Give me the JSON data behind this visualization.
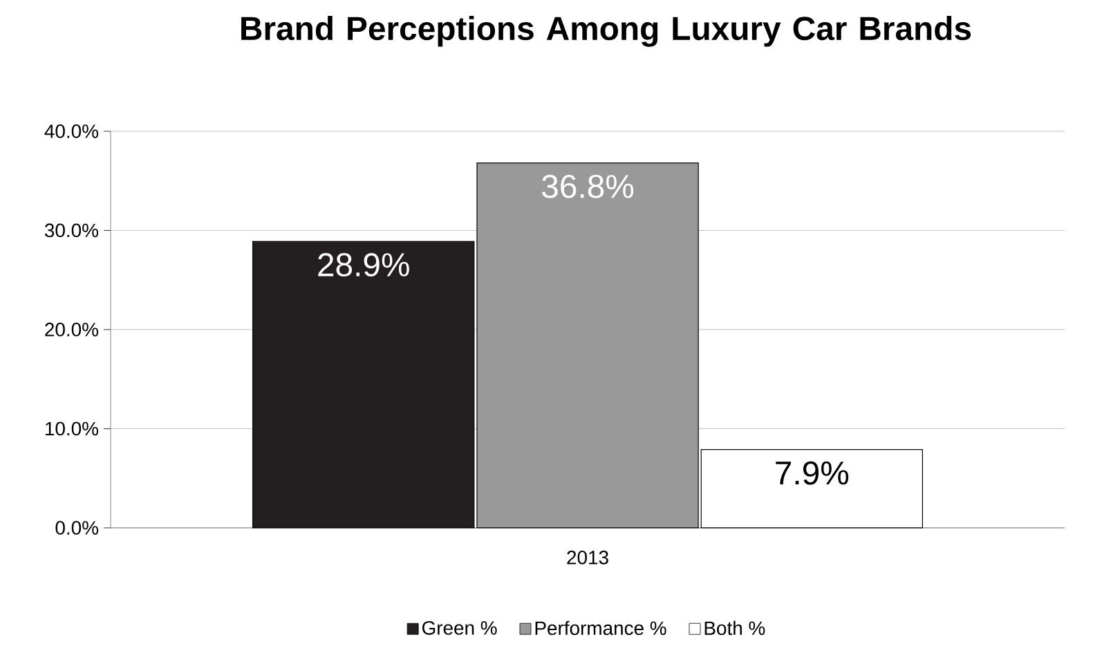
{
  "chart_data": {
    "type": "bar",
    "title": "Brand Perceptions Among Luxury Car Brands",
    "categories": [
      "2013"
    ],
    "series": [
      {
        "name": "Green %",
        "color": "#231f20",
        "values": [
          28.9
        ],
        "value_labels": [
          "28.9%"
        ]
      },
      {
        "name": "Performance %",
        "color": "#999999",
        "values": [
          36.8
        ],
        "value_labels": [
          "36.8%"
        ]
      },
      {
        "name": "Both %",
        "color": "#ffffff",
        "values": [
          7.9
        ],
        "value_labels": [
          "7.9%"
        ]
      }
    ],
    "ylim": [
      0,
      40
    ],
    "yticks": [
      {
        "value": 0,
        "label": "0.0%"
      },
      {
        "value": 10,
        "label": "10.0%"
      },
      {
        "value": 20,
        "label": "20.0%"
      },
      {
        "value": 30,
        "label": "30.0%"
      },
      {
        "value": 40,
        "label": "40.0%"
      }
    ],
    "grid": "y",
    "legend": "bottom"
  }
}
